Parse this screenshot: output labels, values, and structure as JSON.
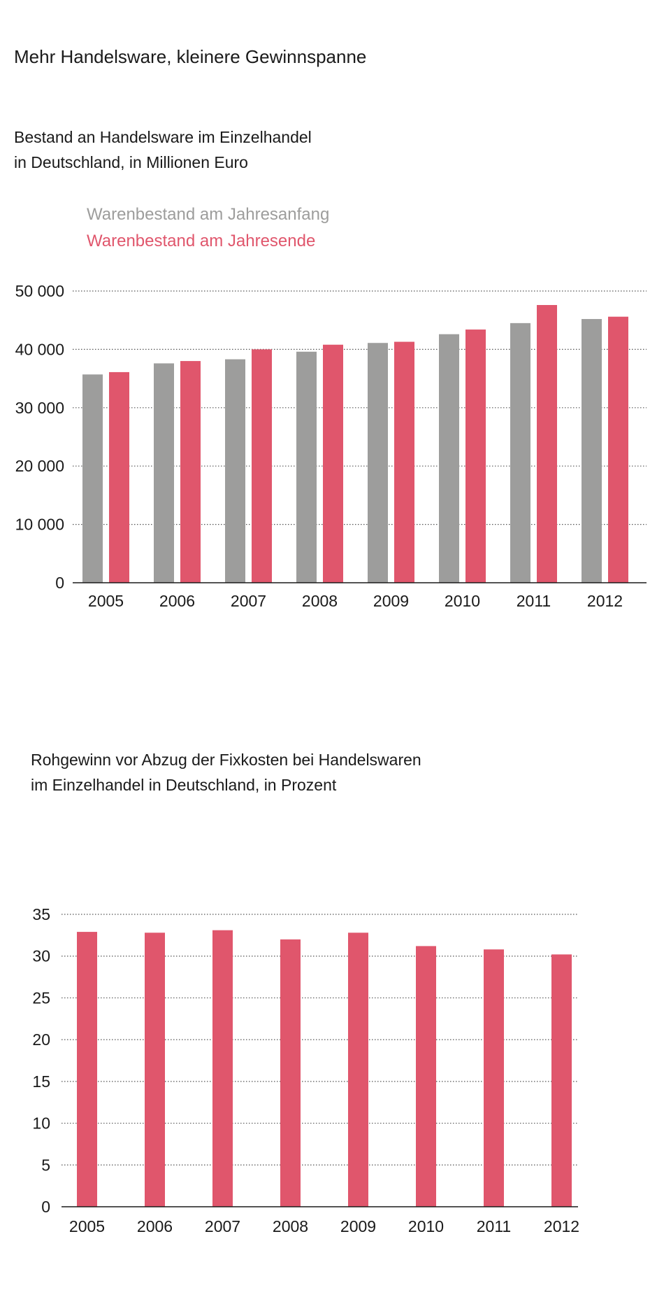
{
  "title": "Mehr Handelsware, kleinere Gewinnspanne",
  "colors": {
    "gray": "#9d9d9c",
    "red": "#e0566c",
    "grid": "#555555",
    "axis": "#1a1a1a"
  },
  "chart_data": [
    {
      "type": "bar",
      "subtitle_lines": [
        "Bestand an Handelsware im Einzelhandel",
        "in Deutschland, in Millionen Euro"
      ],
      "categories": [
        "2005",
        "2006",
        "2007",
        "2008",
        "2009",
        "2010",
        "2011",
        "2012"
      ],
      "series": [
        {
          "name": "Warenbestand am Jahresanfang",
          "color": "#9d9d9c",
          "values": [
            35700,
            37600,
            38300,
            39600,
            41100,
            42600,
            44500,
            45200
          ]
        },
        {
          "name": "Warenbestand am Jahresende",
          "color": "#e0566c",
          "values": [
            36100,
            38000,
            40000,
            40800,
            41300,
            43400,
            47600,
            45600
          ]
        }
      ],
      "ylim": [
        0,
        50000
      ],
      "yticks": [
        0,
        10000,
        20000,
        30000,
        40000,
        50000
      ],
      "ytick_labels": [
        "0",
        "10 000",
        "20 000",
        "30 000",
        "40 000",
        "50 000"
      ],
      "grid": true,
      "legend": "top-left"
    },
    {
      "type": "bar",
      "subtitle_lines": [
        "Rohgewinn vor Abzug der Fixkosten bei Handelswaren",
        "im Einzelhandel in Deutschland, in Prozent"
      ],
      "categories": [
        "2005",
        "2006",
        "2007",
        "2008",
        "2009",
        "2010",
        "2011",
        "2012"
      ],
      "series": [
        {
          "color": "#e0566c",
          "values": [
            32.9,
            32.8,
            33.1,
            32.0,
            32.8,
            31.2,
            30.8,
            30.2
          ]
        }
      ],
      "ylim": [
        0,
        35
      ],
      "yticks": [
        0,
        5,
        10,
        15,
        20,
        25,
        30,
        35
      ],
      "ytick_labels": [
        "0",
        "5",
        "10",
        "15",
        "20",
        "25",
        "30",
        "35"
      ],
      "grid": true
    }
  ]
}
